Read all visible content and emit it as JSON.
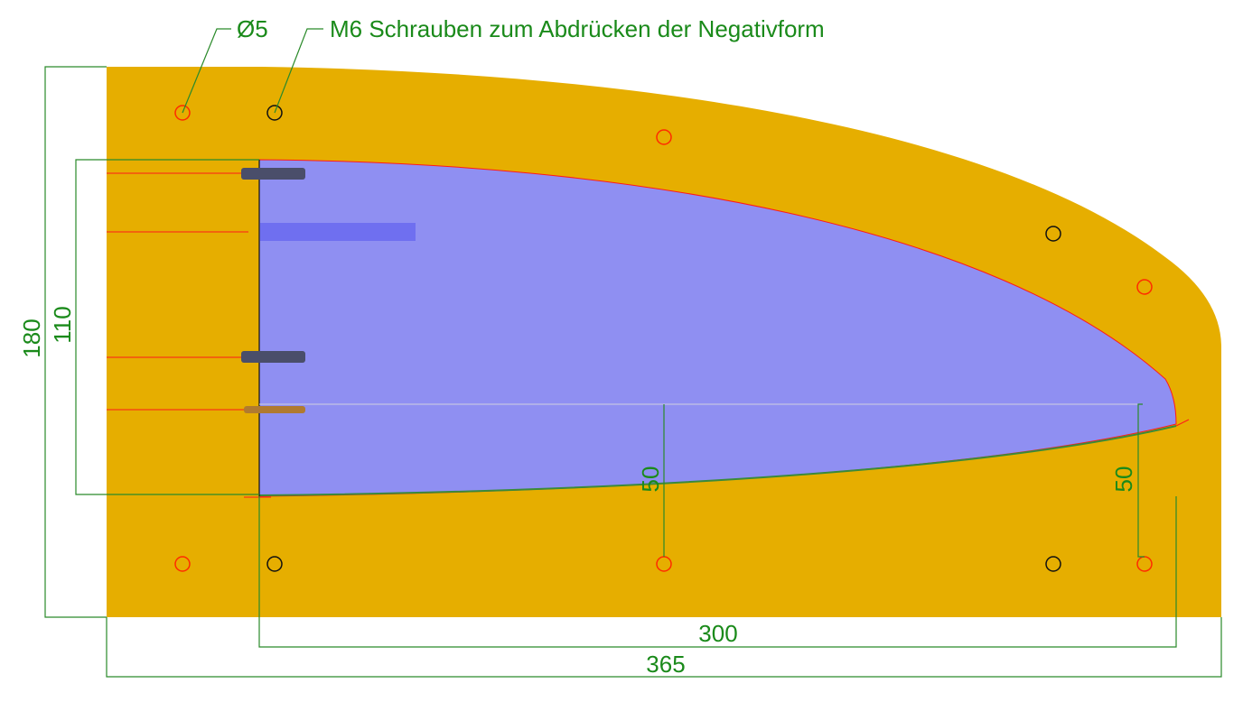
{
  "labels": {
    "hole_diameter": "Ø5",
    "screws": "M6 Schrauben zum Abdrücken der Negativform"
  },
  "dimensions": {
    "total_height": "180",
    "inner_height": "110",
    "inner_length": "300",
    "total_length": "365",
    "offset_middle": "50",
    "offset_right": "50"
  }
}
